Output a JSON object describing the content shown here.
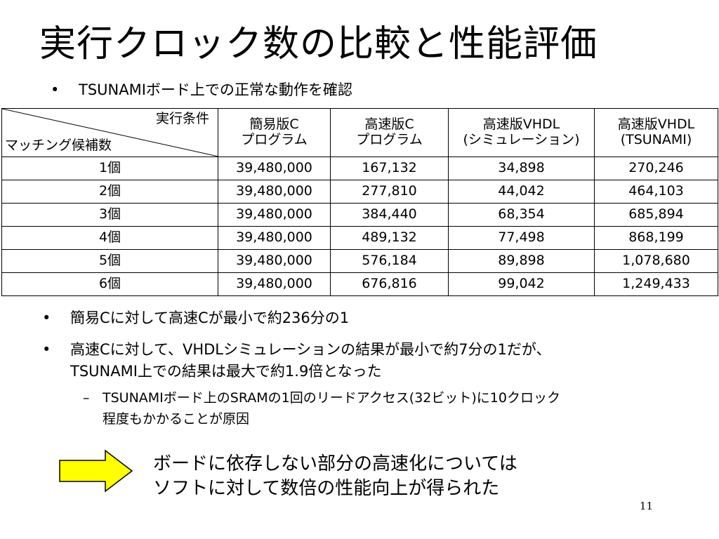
{
  "title": "実行クロック数の比較と性能評価",
  "bullet_intro": "TSUNAMIボード上での正常な動作を確認",
  "table": {
    "header_diag_top": "実行条件",
    "header_diag_bottom": "マッチング候補数",
    "columns": [
      {
        "line1": "簡易版C",
        "line2": "プログラム"
      },
      {
        "line1": "高速版C",
        "line2": "プログラム"
      },
      {
        "line1": "高速版VHDL",
        "line2": "(シミュレーション)"
      },
      {
        "line1": "高速版VHDL",
        "line2": "(TSUNAMI)"
      }
    ],
    "rows": [
      {
        "label": "1個",
        "values": [
          "39,480,000",
          "167,132",
          "34,898",
          "270,246"
        ]
      },
      {
        "label": "2個",
        "values": [
          "39,480,000",
          "277,810",
          "44,042",
          "464,103"
        ]
      },
      {
        "label": "3個",
        "values": [
          "39,480,000",
          "384,440",
          "68,354",
          "685,894"
        ]
      },
      {
        "label": "4個",
        "values": [
          "39,480,000",
          "489,132",
          "77,498",
          "868,199"
        ]
      },
      {
        "label": "5個",
        "values": [
          "39,480,000",
          "576,184",
          "89,898",
          "1,078,680"
        ]
      },
      {
        "label": "6個",
        "values": [
          "39,480,000",
          "676,816",
          "99,042",
          "1,249,433"
        ]
      }
    ]
  },
  "bullets": [
    "簡易Cに対して高速Cが最小で約236分の1",
    "高速Cに対して、VHDLシミュレーションの結果が最小で約7分の1だが、",
    "TSUNAMI上での結果は最大で約1.9倍となった"
  ],
  "sub_bullet": [
    "TSUNAMIボード上のSRAMの1回のリードアクセス(32ビット)に10クロック",
    "程度もかかることが原因"
  ],
  "conclusion": [
    "ボードに依存しない部分の高速化については",
    "ソフトに対して数倍の性能向上が得られた"
  ],
  "arrow_color": "#ffff00",
  "page_number": "11"
}
